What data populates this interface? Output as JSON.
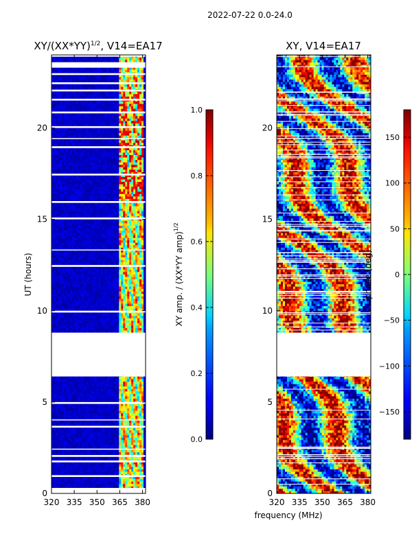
{
  "suptitle": "2022-07-22 0.0-24.0",
  "xlabel_shared": "frequency (MHz)",
  "colors": {
    "panel_bg": "#ffffff",
    "axis": "#000000"
  },
  "chart_data": [
    {
      "type": "heatmap",
      "title_main": "XY/(XX*YY)",
      "title_exp": "1/2",
      "title_suffix": ", V14=EA17",
      "ylabel": "UT (hours)",
      "xlim": [
        320,
        382
      ],
      "ylim": [
        0,
        24
      ],
      "xticks": [
        320,
        335,
        350,
        365,
        380
      ],
      "yticks": [
        0,
        5,
        10,
        15,
        20
      ],
      "colorbar": {
        "label_main": "XY amp. / (XX*YY amp)",
        "label_exp": "1/2",
        "range": [
          0.0,
          1.0
        ],
        "ticks": [
          "0.0",
          "0.2",
          "0.4",
          "0.6",
          "0.8",
          "1.0"
        ],
        "tick_values": [
          0.0,
          0.2,
          0.4,
          0.6,
          0.8,
          1.0
        ],
        "colormap": "jet"
      },
      "data_gaps_hours": [
        [
          0.0,
          0.3
        ],
        [
          0.9,
          1.0
        ],
        [
          1.7,
          1.8
        ],
        [
          2.0,
          2.1
        ],
        [
          2.4,
          2.45
        ],
        [
          3.6,
          3.7
        ],
        [
          4.0,
          4.05
        ],
        [
          4.9,
          5.0
        ],
        [
          6.4,
          8.8
        ],
        [
          9.9,
          10.0
        ],
        [
          12.4,
          12.5
        ],
        [
          13.3,
          13.35
        ],
        [
          15.0,
          15.1
        ],
        [
          15.9,
          16.0
        ],
        [
          17.4,
          17.5
        ],
        [
          18.9,
          19.0
        ],
        [
          19.4,
          19.45
        ],
        [
          20.0,
          20.1
        ],
        [
          20.8,
          20.9
        ],
        [
          21.5,
          21.6
        ],
        [
          22.0,
          22.1
        ],
        [
          22.4,
          22.5
        ],
        [
          22.9,
          23.0
        ],
        [
          23.3,
          23.6
        ],
        [
          23.9,
          24.0
        ]
      ],
      "high_amplitude_band_mhz": [
        364,
        381
      ],
      "summary": "Low normalized amplitude (~0.0-0.1) at 320-363 MHz; elevated amplitude (0.3-0.9) in striped structure at 364-381 MHz"
    },
    {
      "type": "heatmap",
      "title_main": "XY",
      "title_suffix": ", V14=EA17",
      "ylabel": "",
      "xlim": [
        320,
        382
      ],
      "ylim": [
        0,
        24
      ],
      "xticks": [
        320,
        335,
        350,
        365,
        380
      ],
      "yticks": [
        0,
        5,
        10,
        15,
        20
      ],
      "colorbar": {
        "label_main": "phase (deg)",
        "range": [
          -180,
          180
        ],
        "ticks": [
          "−150",
          "−100",
          "−50",
          "0",
          "50",
          "100",
          "150"
        ],
        "tick_values": [
          -150,
          -100,
          -50,
          0,
          50,
          100,
          150
        ],
        "colormap": "jet"
      },
      "data_gaps_hours": [
        [
          6.4,
          8.8
        ]
      ],
      "summary": "Phase varies across full -180 to 180 deg range with banded structure"
    }
  ]
}
